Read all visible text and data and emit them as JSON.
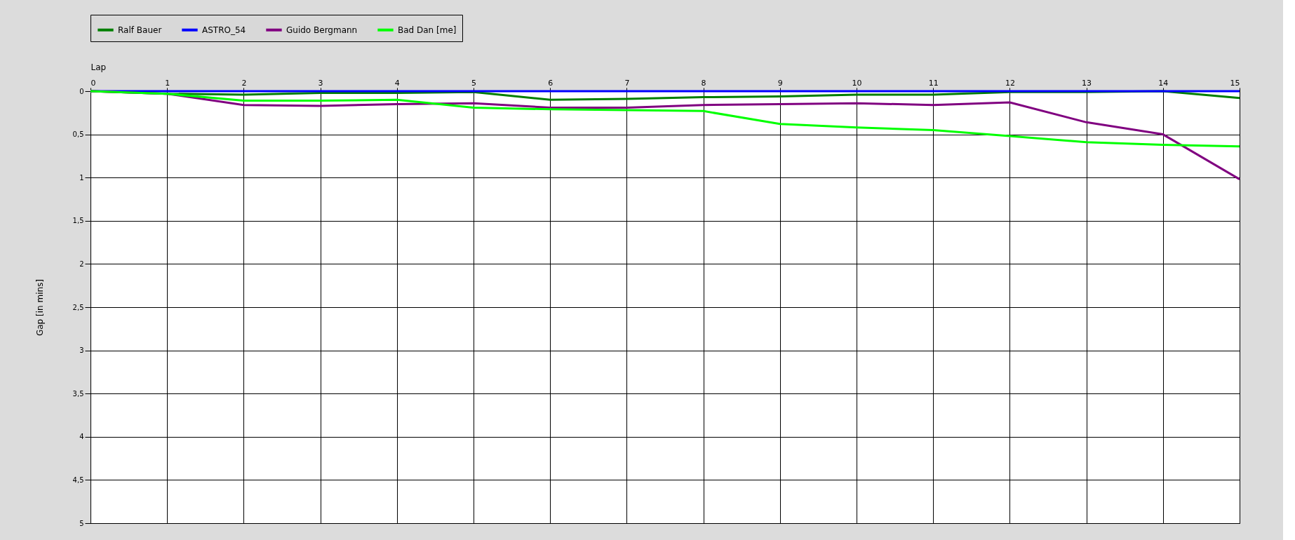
{
  "chart_data": {
    "type": "line",
    "xlabel": "Lap",
    "ylabel": "Gap [in mins]",
    "x": [
      0,
      1,
      2,
      3,
      4,
      5,
      6,
      7,
      8,
      9,
      10,
      11,
      12,
      13,
      14,
      15
    ],
    "series": [
      {
        "name": "Ralf Bauer",
        "color": "#007f00",
        "values": [
          0,
          0.03,
          0.04,
          0.02,
          0.02,
          0.01,
          0.1,
          0.09,
          0.07,
          0.06,
          0.04,
          0.04,
          0.01,
          0.01,
          0,
          0.08
        ]
      },
      {
        "name": "ASTRO_54",
        "color": "#0000ff",
        "values": [
          0,
          0,
          0,
          0,
          0,
          0,
          0,
          0,
          0,
          0,
          0,
          0,
          0,
          0,
          0,
          0
        ]
      },
      {
        "name": "Guido Bergmann",
        "color": "#800080",
        "values": [
          0,
          0.03,
          0.16,
          0.17,
          0.15,
          0.14,
          0.19,
          0.19,
          0.16,
          0.15,
          0.14,
          0.16,
          0.13,
          0.36,
          0.5,
          1.02
        ]
      },
      {
        "name": "Bad Dan [me]",
        "color": "#00ff00",
        "values": [
          0,
          0.03,
          0.11,
          0.11,
          0.1,
          0.19,
          0.21,
          0.22,
          0.23,
          0.38,
          0.42,
          0.45,
          0.52,
          0.59,
          0.62,
          0.64
        ]
      }
    ],
    "xlim": [
      0,
      15
    ],
    "xticks": [
      0,
      1,
      2,
      3,
      4,
      5,
      6,
      7,
      8,
      9,
      10,
      11,
      12,
      13,
      14,
      15
    ],
    "ylim": [
      5,
      0
    ],
    "yticks": [
      0,
      {
        "value": 0.5,
        "label": "0,5"
      },
      1,
      {
        "value": 1.5,
        "label": "1,5"
      },
      2,
      {
        "value": 2.5,
        "label": "2,5"
      },
      3,
      {
        "value": 3.5,
        "label": "3,5"
      },
      4,
      {
        "value": 4.5,
        "label": "4,5"
      },
      5
    ],
    "grid": true,
    "legend": "top",
    "marker": "none",
    "line_style": "solid"
  }
}
